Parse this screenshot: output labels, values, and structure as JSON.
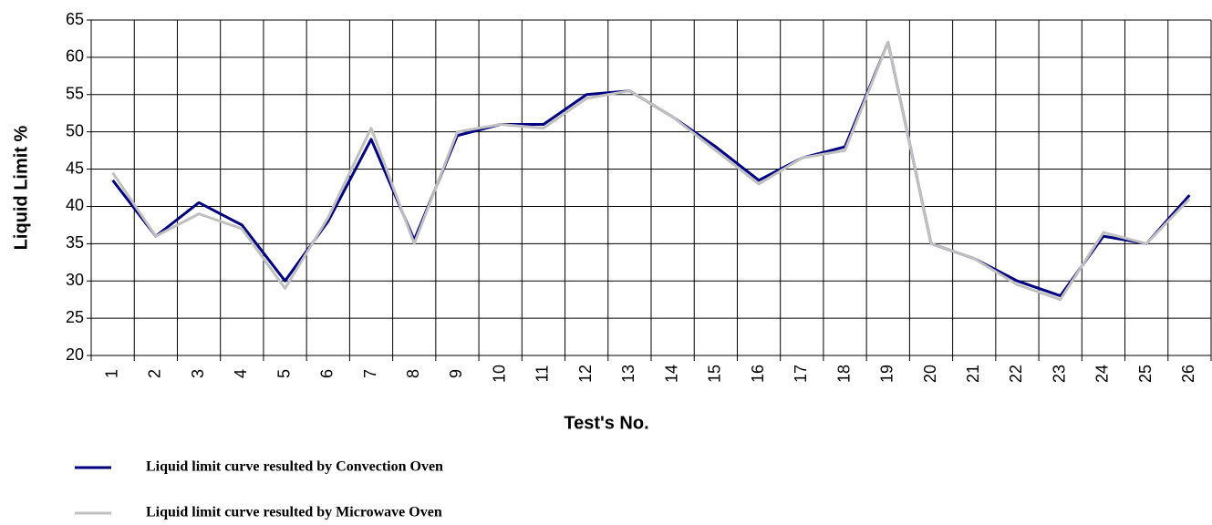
{
  "chart_data": {
    "type": "line",
    "x_label": "Test's No.",
    "y_label": "Liquid Limit %",
    "categories": [
      "1",
      "2",
      "3",
      "4",
      "5",
      "6",
      "7",
      "8",
      "9",
      "10",
      "11",
      "12",
      "13",
      "14",
      "15",
      "16",
      "17",
      "18",
      "19",
      "20",
      "21",
      "22",
      "23",
      "24",
      "25",
      "26"
    ],
    "series": [
      {
        "name": "Liquid limit curve resulted by Convection Oven",
        "color": "#000080",
        "values": [
          43.5,
          36,
          40.5,
          37.5,
          30,
          38,
          49,
          35.5,
          49.5,
          51,
          51,
          55,
          55.5,
          52,
          48,
          43.5,
          46.5,
          48,
          62,
          35,
          33,
          30,
          28,
          36,
          35,
          41.5
        ]
      },
      {
        "name": "Liquid limit curve resulted by Microwave Oven",
        "color": "#c0c0c0",
        "values": [
          44.5,
          36,
          39,
          37,
          29,
          38.5,
          50.5,
          35,
          50,
          51,
          50.5,
          54.5,
          55.5,
          52,
          47.5,
          43,
          46.5,
          47.5,
          62,
          35,
          33,
          29.5,
          27.5,
          36.5,
          35,
          41
        ]
      }
    ],
    "ylim": [
      20,
      65
    ],
    "yticks": [
      20,
      25,
      30,
      35,
      40,
      45,
      50,
      55,
      60,
      65
    ],
    "grid": true
  }
}
